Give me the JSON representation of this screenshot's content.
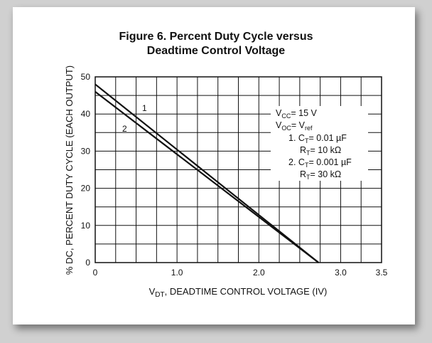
{
  "chart_data": {
    "type": "line",
    "title": "Figure 6. Percent Duty Cycle versus Deadtime Control Voltage",
    "title_lines": [
      "Figure 6. Percent Duty Cycle versus",
      "Deadtime Control Voltage"
    ],
    "xlabel": "V_DT, DEADTIME CONTROL VOLTAGE (IV)",
    "ylabel": "% DC, PERCENT DUTY CYCLE (EACH OUTPUT)",
    "xlim": [
      0,
      3.5
    ],
    "ylim": [
      0,
      50
    ],
    "x_ticks": [
      "0",
      "1.0",
      "2.0",
      "3.0",
      "3.5"
    ],
    "x_tick_values": [
      0,
      1.0,
      2.0,
      3.0,
      3.5
    ],
    "y_ticks": [
      "0",
      "10",
      "20",
      "30",
      "40",
      "50"
    ],
    "y_tick_values": [
      0,
      10,
      20,
      30,
      40,
      50
    ],
    "grid": true,
    "series": [
      {
        "name": "1",
        "x": [
          0,
          2.73
        ],
        "y": [
          48,
          0
        ]
      },
      {
        "name": "2",
        "x": [
          0,
          2.73
        ],
        "y": [
          46,
          0
        ]
      }
    ],
    "legend": {
      "placement": "top-right",
      "vcc": "= 15 V",
      "voc": "= V",
      "item1_num": "1.",
      "item1_ct": "= 0.01 µF",
      "item1_rt": "= 10 kΩ",
      "item2_num": "2.",
      "item2_ct": "= 0.001 µF",
      "item2_rt": "= 30 kΩ"
    }
  }
}
